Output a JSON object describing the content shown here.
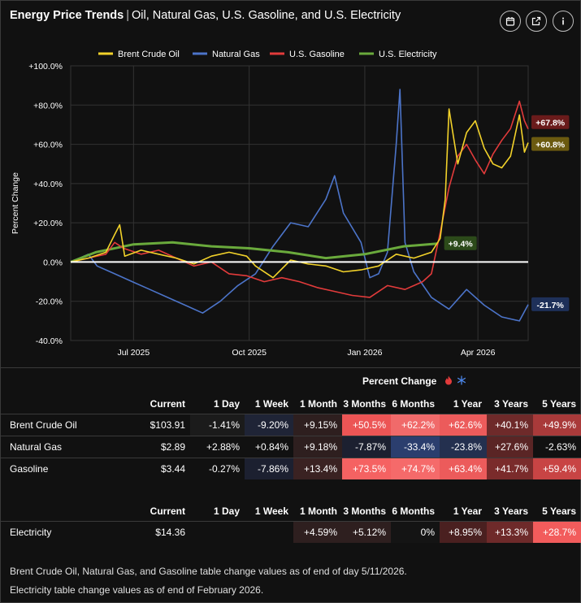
{
  "header": {
    "title_bold": "Energy Price Trends",
    "title_rest": "Oil, Natural Gas, U.S. Gasoline, and U.S. Electricity"
  },
  "icons": {
    "calendar": "calendar-icon",
    "external": "external-link-icon",
    "info": "info-icon"
  },
  "chart_data": {
    "type": "line",
    "ylabel": "Percent Change",
    "ylim": [
      -40,
      100
    ],
    "y_ticks": [
      "+100.0%",
      "+80.0%",
      "+60.0%",
      "+40.0%",
      "+20.0%",
      "0.0%",
      "-20.0%",
      "-40.0%"
    ],
    "x_ticks": [
      "Jul 2025",
      "Oct 2025",
      "Jan 2026",
      "Apr 2026"
    ],
    "x_tick_dates": [
      "2025-07-01",
      "2025-10-01",
      "2026-01-01",
      "2026-04-01"
    ],
    "x_range": [
      "2025-05-12",
      "2026-05-11"
    ],
    "grid": true,
    "legend_position": "top",
    "series": [
      {
        "name": "Brent Crude Oil",
        "color": "#f2d22a",
        "end_label": "+60.8%",
        "end_label_bg": "#6b5a10",
        "points": [
          [
            "2025-05-12",
            0
          ],
          [
            "2025-05-26",
            2
          ],
          [
            "2025-06-09",
            5
          ],
          [
            "2025-06-16",
            14
          ],
          [
            "2025-06-20",
            19
          ],
          [
            "2025-06-24",
            3
          ],
          [
            "2025-07-07",
            6
          ],
          [
            "2025-07-21",
            4
          ],
          [
            "2025-08-04",
            2
          ],
          [
            "2025-08-18",
            -1
          ],
          [
            "2025-09-01",
            3
          ],
          [
            "2025-09-15",
            5
          ],
          [
            "2025-09-29",
            3
          ],
          [
            "2025-10-06",
            -2
          ],
          [
            "2025-10-20",
            -8
          ],
          [
            "2025-11-03",
            1
          ],
          [
            "2025-11-17",
            -1
          ],
          [
            "2025-12-01",
            -2
          ],
          [
            "2025-12-15",
            -5
          ],
          [
            "2025-12-29",
            -4
          ],
          [
            "2026-01-12",
            -2
          ],
          [
            "2026-01-26",
            4
          ],
          [
            "2026-02-09",
            2
          ],
          [
            "2026-02-23",
            5
          ],
          [
            "2026-03-02",
            12
          ],
          [
            "2026-03-06",
            32
          ],
          [
            "2026-03-09",
            78
          ],
          [
            "2026-03-16",
            50
          ],
          [
            "2026-03-23",
            66
          ],
          [
            "2026-03-30",
            72
          ],
          [
            "2026-04-06",
            58
          ],
          [
            "2026-04-13",
            50
          ],
          [
            "2026-04-20",
            48
          ],
          [
            "2026-04-27",
            54
          ],
          [
            "2026-05-04",
            75
          ],
          [
            "2026-05-08",
            56
          ],
          [
            "2026-05-11",
            60.8
          ]
        ]
      },
      {
        "name": "Natural Gas",
        "color": "#4c74c9",
        "end_label": "-21.7%",
        "end_label_bg": "#1e3059",
        "points": [
          [
            "2025-05-12",
            0
          ],
          [
            "2025-05-26",
            4
          ],
          [
            "2025-06-02",
            -2
          ],
          [
            "2025-06-16",
            -6
          ],
          [
            "2025-06-30",
            -10
          ],
          [
            "2025-07-14",
            -14
          ],
          [
            "2025-07-28",
            -18
          ],
          [
            "2025-08-11",
            -22
          ],
          [
            "2025-08-25",
            -26
          ],
          [
            "2025-09-08",
            -20
          ],
          [
            "2025-09-22",
            -12
          ],
          [
            "2025-10-06",
            -6
          ],
          [
            "2025-10-20",
            8
          ],
          [
            "2025-11-03",
            20
          ],
          [
            "2025-11-17",
            18
          ],
          [
            "2025-12-01",
            32
          ],
          [
            "2025-12-08",
            44
          ],
          [
            "2025-12-15",
            25
          ],
          [
            "2025-12-29",
            10
          ],
          [
            "2026-01-05",
            -8
          ],
          [
            "2026-01-12",
            -6
          ],
          [
            "2026-01-19",
            5
          ],
          [
            "2026-01-26",
            60
          ],
          [
            "2026-01-29",
            88
          ],
          [
            "2026-02-02",
            10
          ],
          [
            "2026-02-09",
            -5
          ],
          [
            "2026-02-23",
            -18
          ],
          [
            "2026-03-09",
            -24
          ],
          [
            "2026-03-23",
            -14
          ],
          [
            "2026-04-06",
            -22
          ],
          [
            "2026-04-20",
            -28
          ],
          [
            "2026-05-04",
            -30
          ],
          [
            "2026-05-11",
            -21.7
          ]
        ]
      },
      {
        "name": "U.S. Gasoline",
        "color": "#e23b3b",
        "end_label": "+67.8%",
        "end_label_bg": "#6a1b1b",
        "points": [
          [
            "2025-05-12",
            0
          ],
          [
            "2025-05-26",
            2
          ],
          [
            "2025-06-09",
            4
          ],
          [
            "2025-06-16",
            10
          ],
          [
            "2025-06-23",
            7
          ],
          [
            "2025-07-07",
            4
          ],
          [
            "2025-07-21",
            6
          ],
          [
            "2025-08-04",
            2
          ],
          [
            "2025-08-18",
            -2
          ],
          [
            "2025-09-01",
            0
          ],
          [
            "2025-09-15",
            -6
          ],
          [
            "2025-09-29",
            -7
          ],
          [
            "2025-10-13",
            -10
          ],
          [
            "2025-10-27",
            -8
          ],
          [
            "2025-11-10",
            -10
          ],
          [
            "2025-11-24",
            -13
          ],
          [
            "2025-12-08",
            -15
          ],
          [
            "2025-12-22",
            -17
          ],
          [
            "2026-01-05",
            -18
          ],
          [
            "2026-01-19",
            -12
          ],
          [
            "2026-02-02",
            -14
          ],
          [
            "2026-02-16",
            -10
          ],
          [
            "2026-02-23",
            -6
          ],
          [
            "2026-03-02",
            15
          ],
          [
            "2026-03-09",
            38
          ],
          [
            "2026-03-16",
            54
          ],
          [
            "2026-03-23",
            60
          ],
          [
            "2026-03-30",
            52
          ],
          [
            "2026-04-06",
            45
          ],
          [
            "2026-04-13",
            55
          ],
          [
            "2026-04-20",
            62
          ],
          [
            "2026-04-27",
            68
          ],
          [
            "2026-05-04",
            82
          ],
          [
            "2026-05-08",
            72
          ],
          [
            "2026-05-11",
            67.8
          ]
        ]
      },
      {
        "name": "U.S. Electricity",
        "color": "#6aaa3c",
        "end_label": "+9.4%",
        "end_label_bg": "#2c4a1a",
        "points": [
          [
            "2025-05-12",
            0
          ],
          [
            "2025-06-01",
            5
          ],
          [
            "2025-07-01",
            9
          ],
          [
            "2025-08-01",
            10
          ],
          [
            "2025-09-01",
            8
          ],
          [
            "2025-10-01",
            7
          ],
          [
            "2025-11-01",
            5
          ],
          [
            "2025-12-01",
            2
          ],
          [
            "2026-01-01",
            4
          ],
          [
            "2026-02-01",
            8
          ],
          [
            "2026-02-28",
            9.4
          ]
        ]
      }
    ]
  },
  "percent_change_title": "Percent Change",
  "table1": {
    "headers": [
      "",
      "Current",
      "1 Day",
      "1 Week",
      "1 Month",
      "3 Months",
      "6 Months",
      "1 Year",
      "3 Years",
      "5 Years"
    ],
    "rows": [
      {
        "label": "Brent Crude Oil",
        "current": "$103.91",
        "values": [
          "-1.41%",
          "-9.20%",
          "+9.15%",
          "+50.5%",
          "+62.2%",
          "+62.6%",
          "+40.1%",
          "+49.9%"
        ],
        "colors": [
          "#1b1b1b",
          "#1f2436",
          "#2e1f1f",
          "#ec5555",
          "#f06a6a",
          "#ec5b5b",
          "#6e2a2a",
          "#a93a3a"
        ]
      },
      {
        "label": "Natural Gas",
        "current": "$2.89",
        "values": [
          "+2.88%",
          "+0.84%",
          "+9.18%",
          "-7.87%",
          "-33.4%",
          "-23.8%",
          "+27.6%",
          "-2.63%"
        ],
        "colors": [
          "#111111",
          "#111111",
          "#2e1f1f",
          "#1c2030",
          "#2b3e6e",
          "#24304f",
          "#5a2525",
          "#111111"
        ]
      },
      {
        "label": "Gasoline",
        "current": "$3.44",
        "values": [
          "-0.27%",
          "-7.86%",
          "+13.4%",
          "+73.5%",
          "+74.7%",
          "+63.4%",
          "+41.7%",
          "+59.4%"
        ],
        "colors": [
          "#111111",
          "#1c2030",
          "#3a2222",
          "#f56262",
          "#f56a6a",
          "#ec5b5b",
          "#7a2b2b",
          "#c84444"
        ]
      }
    ]
  },
  "table2": {
    "headers": [
      "",
      "Current",
      "1 Day",
      "1 Week",
      "1 Month",
      "3 Months",
      "6 Months",
      "1 Year",
      "3 Years",
      "5 Years"
    ],
    "rows": [
      {
        "label": "Electricity",
        "current": "$14.36",
        "values": [
          "",
          "",
          "+4.59%",
          "+5.12%",
          "0%",
          "+8.95%",
          "+13.3%",
          "+28.7%"
        ],
        "colors": [
          "#111111",
          "#111111",
          "#2e1f1f",
          "#2e1f1f",
          "#141414",
          "#4a2020",
          "#6e2a2a",
          "#f25c5c"
        ]
      }
    ]
  },
  "footnotes": [
    "Brent Crude Oil, Natural Gas, and Gasoline table change values as of end of day 5/11/2026.",
    "Electricity table change values as of end of February 2026."
  ]
}
